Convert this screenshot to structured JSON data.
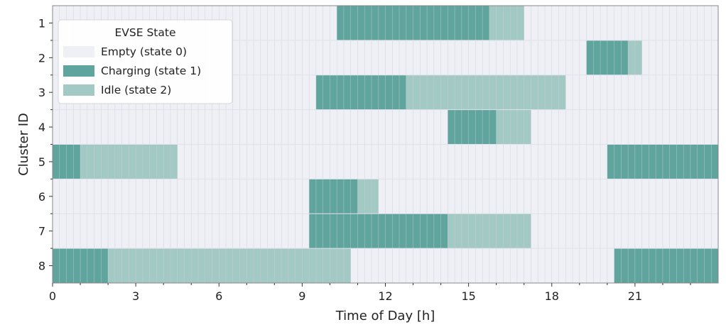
{
  "chart_data": {
    "type": "heatmap",
    "title": "",
    "xlabel": "Time of Day [h]",
    "ylabel": "Cluster ID",
    "xlim": [
      0,
      24
    ],
    "x_ticks": [
      0,
      3,
      6,
      9,
      12,
      15,
      18,
      21
    ],
    "x_tick_labels": [
      "0",
      "3",
      "6",
      "9",
      "12",
      "15",
      "18",
      "21"
    ],
    "categories": [
      "1",
      "2",
      "3",
      "4",
      "5",
      "6",
      "7",
      "8"
    ],
    "time_resolution_h": 0.25,
    "legend": {
      "title": "EVSE State",
      "position": "top-left",
      "entries": [
        {
          "label": "Empty (state 0)",
          "state": 0
        },
        {
          "label": "Charging (state 1)",
          "state": 1
        },
        {
          "label": "Idle (state 2)",
          "state": 2
        }
      ]
    },
    "colors": {
      "state_0": "#eef0f6",
      "state_1": "#5fa59e",
      "state_2": "#a3c9c4",
      "grid": "#c9ccd6"
    },
    "series": [
      {
        "cluster": "1",
        "segments": [
          {
            "state": 1,
            "start": 10.25,
            "end": 15.75
          },
          {
            "state": 2,
            "start": 15.75,
            "end": 17.0
          }
        ]
      },
      {
        "cluster": "2",
        "segments": [
          {
            "state": 1,
            "start": 19.25,
            "end": 20.75
          },
          {
            "state": 2,
            "start": 20.75,
            "end": 21.25
          }
        ]
      },
      {
        "cluster": "3",
        "segments": [
          {
            "state": 1,
            "start": 9.5,
            "end": 12.75
          },
          {
            "state": 2,
            "start": 12.75,
            "end": 18.5
          }
        ]
      },
      {
        "cluster": "4",
        "segments": [
          {
            "state": 1,
            "start": 14.25,
            "end": 16.0
          },
          {
            "state": 2,
            "start": 16.0,
            "end": 17.25
          }
        ]
      },
      {
        "cluster": "5",
        "segments": [
          {
            "state": 1,
            "start": 0.0,
            "end": 1.0
          },
          {
            "state": 2,
            "start": 1.0,
            "end": 4.5
          },
          {
            "state": 1,
            "start": 20.0,
            "end": 24.0
          }
        ]
      },
      {
        "cluster": "6",
        "segments": [
          {
            "state": 1,
            "start": 9.25,
            "end": 11.0
          },
          {
            "state": 2,
            "start": 11.0,
            "end": 11.75
          }
        ]
      },
      {
        "cluster": "7",
        "segments": [
          {
            "state": 1,
            "start": 9.25,
            "end": 14.25
          },
          {
            "state": 2,
            "start": 14.25,
            "end": 17.25
          }
        ]
      },
      {
        "cluster": "8",
        "segments": [
          {
            "state": 1,
            "start": 0.0,
            "end": 2.0
          },
          {
            "state": 2,
            "start": 2.0,
            "end": 10.75
          },
          {
            "state": 1,
            "start": 20.25,
            "end": 24.0
          }
        ]
      }
    ]
  }
}
